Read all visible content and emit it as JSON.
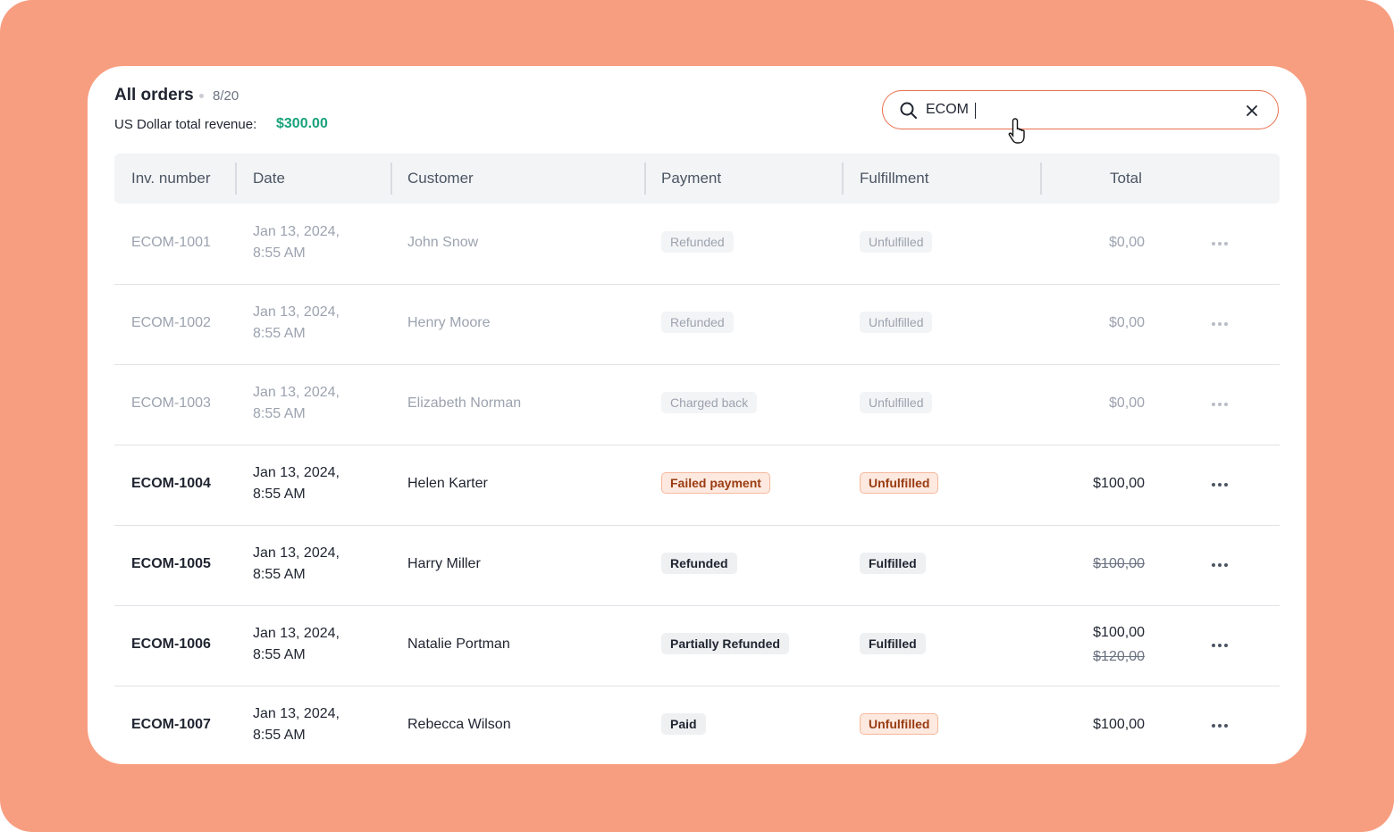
{
  "header": {
    "title": "All orders",
    "count": "8/20",
    "revenue_label": "US Dollar total revenue:",
    "revenue": "$300.00"
  },
  "search": {
    "value": "ECOM"
  },
  "table": {
    "columns": [
      "Inv. number",
      "Date",
      "Customer",
      "Payment",
      "Fulfillment",
      "Total"
    ],
    "rows": [
      {
        "invoice": "ECOM-1001",
        "date": [
          "Jan 13, 2024,",
          "8:55 AM"
        ],
        "customer": "John Snow",
        "payment": "Refunded",
        "payment_tone": "neutral",
        "fulfillment": "Unfulfilled",
        "fulfillment_tone": "neutral",
        "totals": [
          {
            "text": "$0,00",
            "struck": false
          }
        ],
        "muted": true
      },
      {
        "invoice": "ECOM-1002",
        "date": [
          "Jan 13, 2024,",
          "8:55 AM"
        ],
        "customer": "Henry Moore",
        "payment": "Refunded",
        "payment_tone": "neutral",
        "fulfillment": "Unfulfilled",
        "fulfillment_tone": "neutral",
        "totals": [
          {
            "text": "$0,00",
            "struck": false
          }
        ],
        "muted": true
      },
      {
        "invoice": "ECOM-1003",
        "date": [
          "Jan 13, 2024,",
          "8:55 AM"
        ],
        "customer": "Elizabeth Norman",
        "payment": "Charged back",
        "payment_tone": "neutral",
        "fulfillment": "Unfulfilled",
        "fulfillment_tone": "neutral",
        "totals": [
          {
            "text": "$0,00",
            "struck": false
          }
        ],
        "muted": true
      },
      {
        "invoice": "ECOM-1004",
        "date": [
          "Jan 13, 2024,",
          "8:55 AM"
        ],
        "customer": "Helen Karter",
        "payment": "Failed payment",
        "payment_tone": "warning",
        "fulfillment": "Unfulfilled",
        "fulfillment_tone": "warning",
        "totals": [
          {
            "text": "$100,00",
            "struck": false
          }
        ],
        "muted": false
      },
      {
        "invoice": "ECOM-1005",
        "date": [
          "Jan 13, 2024,",
          "8:55 AM"
        ],
        "customer": "Harry Miller",
        "payment": "Refunded",
        "payment_tone": "neutral",
        "fulfillment": "Fulfilled",
        "fulfillment_tone": "neutral",
        "totals": [
          {
            "text": "$100,00",
            "struck": true
          }
        ],
        "muted": false
      },
      {
        "invoice": "ECOM-1006",
        "date": [
          "Jan 13, 2024,",
          "8:55 AM"
        ],
        "customer": "Natalie Portman",
        "payment": "Partially Refunded",
        "payment_tone": "neutral",
        "fulfillment": "Fulfilled",
        "fulfillment_tone": "neutral",
        "totals": [
          {
            "text": "$100,00",
            "struck": false
          },
          {
            "text": "$120,00",
            "struck": true
          }
        ],
        "muted": false
      },
      {
        "invoice": "ECOM-1007",
        "date": [
          "Jan 13, 2024,",
          "8:55 AM"
        ],
        "customer": "Rebecca Wilson",
        "payment": "Paid",
        "payment_tone": "neutral",
        "fulfillment": "Unfulfilled",
        "fulfillment_tone": "warning",
        "totals": [
          {
            "text": "$100,00",
            "struck": false
          }
        ],
        "muted": false
      }
    ]
  }
}
